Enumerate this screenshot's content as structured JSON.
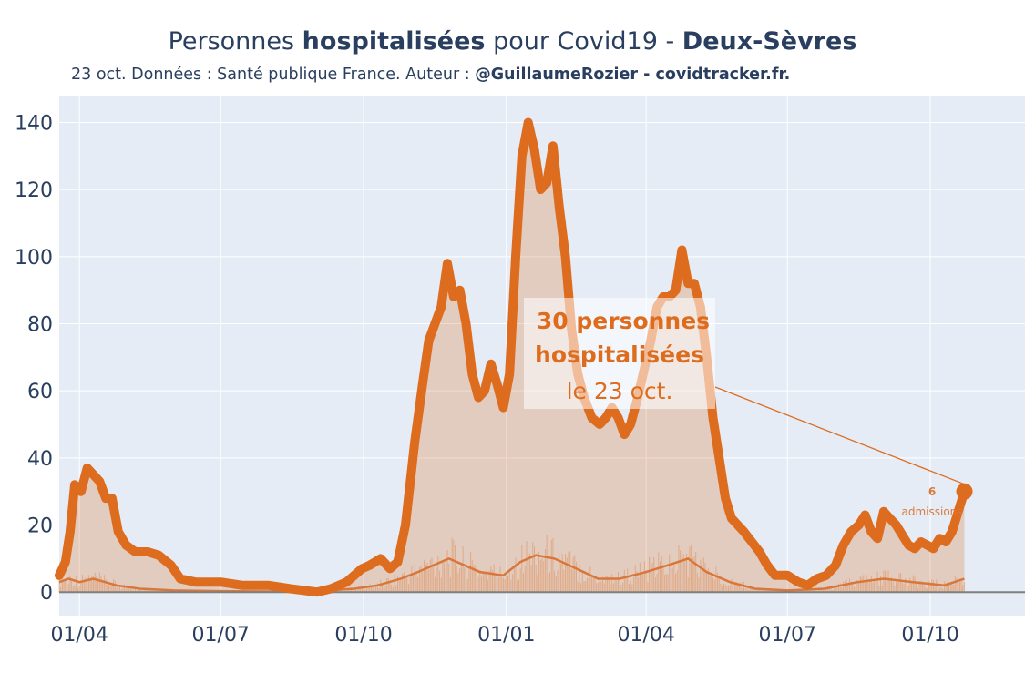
{
  "header": {
    "title_part1": "Personnes ",
    "title_bold1": "hospitalisées",
    "title_part2": " pour Covid19 - ",
    "title_bold2": "Deux-Sèvres",
    "subtitle_plain": "23 oct. Données : Santé publique France. Auteur : ",
    "subtitle_bold": "@GuillaumeRozier - covidtracker.fr."
  },
  "colors": {
    "plot_bg": "#e5ecf6",
    "grid": "#ffffff",
    "line": "#dd6c1e",
    "fill": "rgba(221,108,30,0.25)",
    "admissions": "#e09a66",
    "zero_line": "#7f7f7f"
  },
  "annotation": {
    "line1": "30 personnes",
    "line2": "hospitalisées",
    "line3": "le 23 oct.",
    "admissions_value": "6",
    "admissions_label": "admissions"
  },
  "chart_data": {
    "type": "line",
    "title": "Personnes hospitalisées pour Covid19 - Deux-Sèvres",
    "x_start": "2020-03-19",
    "x_end": "2021-10-23",
    "xlim": [
      "2020-03-19",
      "2021-12-01"
    ],
    "ylim": [
      -7,
      148
    ],
    "yticks": [
      0,
      20,
      40,
      60,
      80,
      100,
      120,
      140
    ],
    "xticks": [
      {
        "date": "2020-04-01",
        "label": "01/04"
      },
      {
        "date": "2020-07-01",
        "label": "01/07"
      },
      {
        "date": "2020-10-01",
        "label": "01/10"
      },
      {
        "date": "2021-01-01",
        "label": "01/01"
      },
      {
        "date": "2021-04-01",
        "label": "01/04"
      },
      {
        "date": "2021-07-01",
        "label": "01/07"
      },
      {
        "date": "2021-10-01",
        "label": "01/10"
      }
    ],
    "grid": true,
    "series": [
      {
        "name": "hospitalisées",
        "points": [
          [
            "2020-03-19",
            5
          ],
          [
            "2020-03-23",
            9
          ],
          [
            "2020-03-26",
            18
          ],
          [
            "2020-03-29",
            32
          ],
          [
            "2020-04-02",
            30
          ],
          [
            "2020-04-06",
            37
          ],
          [
            "2020-04-10",
            35
          ],
          [
            "2020-04-14",
            33
          ],
          [
            "2020-04-18",
            28
          ],
          [
            "2020-04-22",
            28
          ],
          [
            "2020-04-26",
            18
          ],
          [
            "2020-05-01",
            14
          ],
          [
            "2020-05-07",
            12
          ],
          [
            "2020-05-15",
            12
          ],
          [
            "2020-05-22",
            11
          ],
          [
            "2020-05-30",
            8
          ],
          [
            "2020-06-05",
            4
          ],
          [
            "2020-06-15",
            3
          ],
          [
            "2020-07-01",
            3
          ],
          [
            "2020-07-15",
            2
          ],
          [
            "2020-08-01",
            2
          ],
          [
            "2020-08-15",
            1
          ],
          [
            "2020-09-01",
            0
          ],
          [
            "2020-09-10",
            1
          ],
          [
            "2020-09-20",
            3
          ],
          [
            "2020-09-30",
            7
          ],
          [
            "2020-10-05",
            8
          ],
          [
            "2020-10-12",
            10
          ],
          [
            "2020-10-18",
            7
          ],
          [
            "2020-10-23",
            9
          ],
          [
            "2020-10-28",
            20
          ],
          [
            "2020-11-03",
            45
          ],
          [
            "2020-11-08",
            62
          ],
          [
            "2020-11-12",
            75
          ],
          [
            "2020-11-16",
            80
          ],
          [
            "2020-11-20",
            85
          ],
          [
            "2020-11-24",
            98
          ],
          [
            "2020-11-28",
            88
          ],
          [
            "2020-12-02",
            90
          ],
          [
            "2020-12-06",
            80
          ],
          [
            "2020-12-10",
            65
          ],
          [
            "2020-12-14",
            58
          ],
          [
            "2020-12-18",
            60
          ],
          [
            "2020-12-22",
            68
          ],
          [
            "2020-12-26",
            62
          ],
          [
            "2020-12-30",
            55
          ],
          [
            "2021-01-03",
            65
          ],
          [
            "2021-01-07",
            100
          ],
          [
            "2021-01-11",
            130
          ],
          [
            "2021-01-15",
            140
          ],
          [
            "2021-01-19",
            132
          ],
          [
            "2021-01-23",
            120
          ],
          [
            "2021-01-27",
            122
          ],
          [
            "2021-01-31",
            133
          ],
          [
            "2021-02-04",
            115
          ],
          [
            "2021-02-08",
            100
          ],
          [
            "2021-02-12",
            78
          ],
          [
            "2021-02-16",
            65
          ],
          [
            "2021-02-20",
            58
          ],
          [
            "2021-02-25",
            52
          ],
          [
            "2021-03-02",
            50
          ],
          [
            "2021-03-06",
            52
          ],
          [
            "2021-03-10",
            55
          ],
          [
            "2021-03-14",
            52
          ],
          [
            "2021-03-18",
            47
          ],
          [
            "2021-03-22",
            50
          ],
          [
            "2021-03-26",
            57
          ],
          [
            "2021-03-30",
            65
          ],
          [
            "2021-04-04",
            75
          ],
          [
            "2021-04-08",
            85
          ],
          [
            "2021-04-12",
            88
          ],
          [
            "2021-04-16",
            88
          ],
          [
            "2021-04-20",
            90
          ],
          [
            "2021-04-24",
            102
          ],
          [
            "2021-04-28",
            92
          ],
          [
            "2021-05-02",
            92
          ],
          [
            "2021-05-06",
            85
          ],
          [
            "2021-05-10",
            70
          ],
          [
            "2021-05-14",
            52
          ],
          [
            "2021-05-18",
            40
          ],
          [
            "2021-05-22",
            28
          ],
          [
            "2021-05-26",
            22
          ],
          [
            "2021-05-30",
            20
          ],
          [
            "2021-06-03",
            18
          ],
          [
            "2021-06-08",
            15
          ],
          [
            "2021-06-13",
            12
          ],
          [
            "2021-06-18",
            8
          ],
          [
            "2021-06-23",
            5
          ],
          [
            "2021-07-01",
            5
          ],
          [
            "2021-07-08",
            3
          ],
          [
            "2021-07-14",
            2
          ],
          [
            "2021-07-20",
            4
          ],
          [
            "2021-07-26",
            5
          ],
          [
            "2021-08-01",
            8
          ],
          [
            "2021-08-06",
            14
          ],
          [
            "2021-08-11",
            18
          ],
          [
            "2021-08-16",
            20
          ],
          [
            "2021-08-20",
            23
          ],
          [
            "2021-08-24",
            18
          ],
          [
            "2021-08-28",
            16
          ],
          [
            "2021-09-01",
            24
          ],
          [
            "2021-09-05",
            22
          ],
          [
            "2021-09-09",
            20
          ],
          [
            "2021-09-13",
            17
          ],
          [
            "2021-09-17",
            14
          ],
          [
            "2021-09-21",
            13
          ],
          [
            "2021-09-25",
            15
          ],
          [
            "2021-09-29",
            14
          ],
          [
            "2021-10-03",
            13
          ],
          [
            "2021-10-07",
            16
          ],
          [
            "2021-10-11",
            15
          ],
          [
            "2021-10-15",
            18
          ],
          [
            "2021-10-19",
            24
          ],
          [
            "2021-10-23",
            30
          ]
        ]
      },
      {
        "name": "admissions",
        "points": [
          [
            "2020-03-19",
            3
          ],
          [
            "2020-03-25",
            4
          ],
          [
            "2020-04-01",
            3
          ],
          [
            "2020-04-10",
            4
          ],
          [
            "2020-04-25",
            2
          ],
          [
            "2020-05-10",
            1
          ],
          [
            "2020-06-01",
            0.5
          ],
          [
            "2020-07-01",
            0.3
          ],
          [
            "2020-08-01",
            0.2
          ],
          [
            "2020-09-01",
            0.3
          ],
          [
            "2020-09-25",
            1
          ],
          [
            "2020-10-10",
            2
          ],
          [
            "2020-10-25",
            4
          ],
          [
            "2020-11-05",
            6
          ],
          [
            "2020-11-15",
            8
          ],
          [
            "2020-11-25",
            10
          ],
          [
            "2020-12-05",
            8
          ],
          [
            "2020-12-15",
            6
          ],
          [
            "2020-12-30",
            5
          ],
          [
            "2021-01-10",
            9
          ],
          [
            "2021-01-20",
            11
          ],
          [
            "2021-02-01",
            10
          ],
          [
            "2021-02-15",
            7
          ],
          [
            "2021-03-01",
            4
          ],
          [
            "2021-03-15",
            4
          ],
          [
            "2021-04-01",
            6
          ],
          [
            "2021-04-15",
            8
          ],
          [
            "2021-04-28",
            10
          ],
          [
            "2021-05-10",
            6
          ],
          [
            "2021-05-25",
            3
          ],
          [
            "2021-06-10",
            1
          ],
          [
            "2021-07-01",
            0.5
          ],
          [
            "2021-07-25",
            1
          ],
          [
            "2021-08-15",
            3
          ],
          [
            "2021-09-01",
            4
          ],
          [
            "2021-09-20",
            3
          ],
          [
            "2021-10-10",
            2
          ],
          [
            "2021-10-23",
            4
          ]
        ]
      }
    ],
    "annotations": [
      {
        "date": "2021-10-23",
        "value": 30
      }
    ]
  }
}
